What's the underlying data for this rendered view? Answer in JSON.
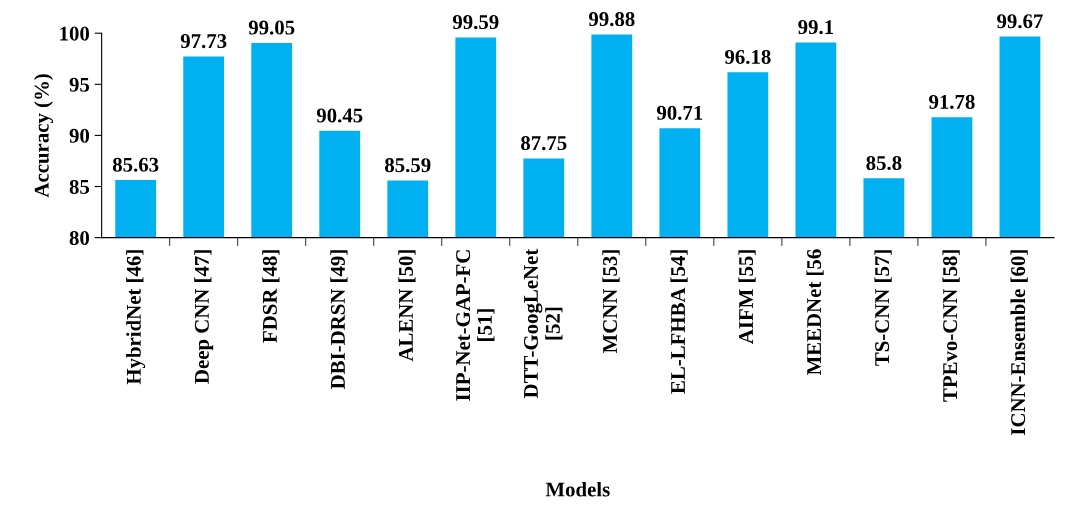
{
  "chart_data": {
    "type": "bar",
    "xlabel": "Models",
    "ylabel": "Accuracy (%)",
    "categories": [
      "HybridNet [46]",
      "Deep CNN [47]",
      "FDSR [48]",
      "DBI-DRSN [49]",
      "ALENN [50]",
      "IIP-Net-GAP-FC\n[51]",
      "DTT-GoogLeNet\n[52]",
      "MCNN [53]",
      "EL-LFHBA [54]",
      "AIFM [55]",
      "MEEDNet [56",
      "TS-CNN [57]",
      "TPEvo-CNN [58]",
      "ICNN-Ensemble [60]"
    ],
    "values": [
      85.63,
      97.73,
      99.05,
      90.45,
      85.59,
      99.59,
      87.75,
      99.88,
      90.71,
      96.18,
      99.1,
      85.8,
      91.78,
      99.67
    ],
    "color": "#00b0f0",
    "ylim": [
      80,
      100
    ],
    "yticks": [
      80,
      85,
      90,
      95,
      100
    ],
    "data_labels": true,
    "grid": false
  }
}
